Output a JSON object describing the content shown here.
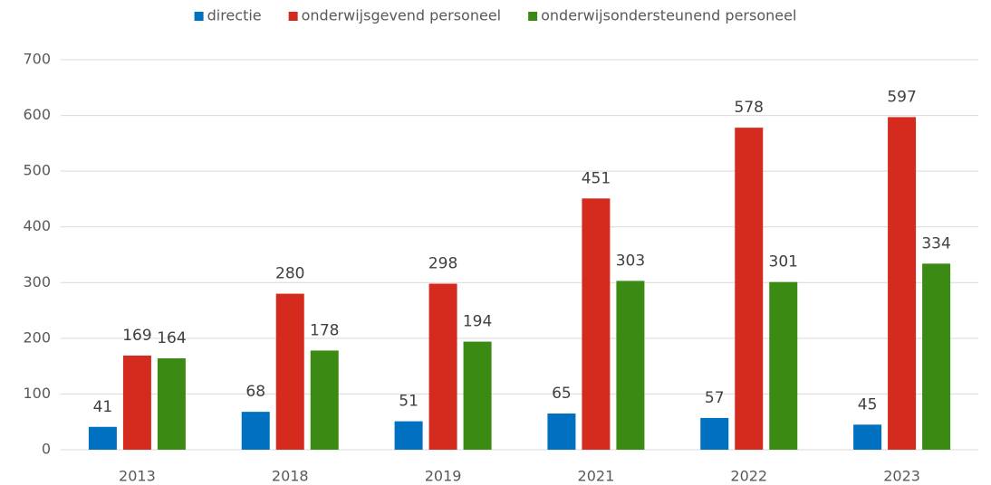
{
  "chart_data": {
    "type": "bar",
    "categories": [
      "2013",
      "2018",
      "2019",
      "2021",
      "2022",
      "2023"
    ],
    "series": [
      {
        "name": "directie",
        "color": "#0070c0",
        "values": [
          41,
          68,
          51,
          65,
          57,
          45
        ]
      },
      {
        "name": "onderwijsgevend personeel",
        "color": "#d52b1e",
        "values": [
          169,
          280,
          298,
          451,
          578,
          597
        ]
      },
      {
        "name": "onderwijsondersteunend personeel",
        "color": "#3a8a14",
        "values": [
          164,
          178,
          194,
          303,
          301,
          334
        ]
      }
    ],
    "ylim": [
      0,
      700
    ],
    "yticks": [
      0,
      100,
      200,
      300,
      400,
      500,
      600,
      700
    ],
    "grid": true,
    "legend": "top"
  }
}
